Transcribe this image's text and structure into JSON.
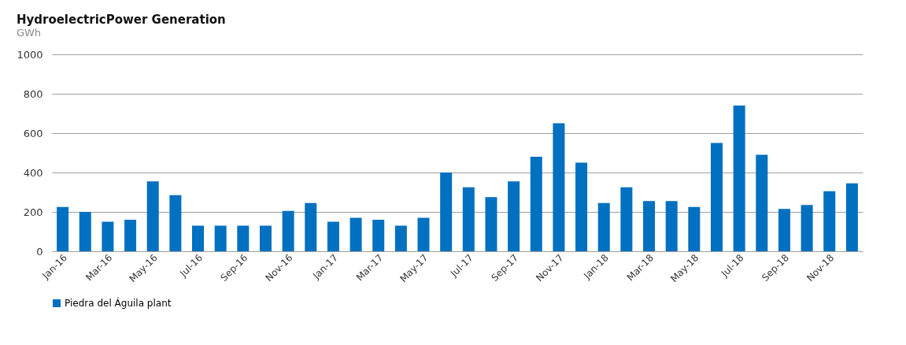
{
  "chart_data": {
    "type": "bar",
    "title": "HydroelectricPower Generation",
    "subtitle": "GWh",
    "categories": [
      "Jan-16",
      null,
      "Mar-16",
      null,
      "May-16",
      null,
      "Jul-16",
      null,
      "Sep-16",
      null,
      "Nov-16",
      null,
      "Jan-17",
      null,
      "Mar-17",
      null,
      "May-17",
      null,
      "Jul-17",
      null,
      "Sep-17",
      null,
      "Nov-17",
      null,
      "Jan-18",
      null,
      "Mar-18",
      null,
      "May-18",
      null,
      "Jul-18",
      null,
      "Sep-18",
      null,
      "Nov-18",
      null
    ],
    "series": [
      {
        "name": "Piedra del Águila plant",
        "color": "#0070c0",
        "values": [
          225,
          200,
          150,
          160,
          355,
          285,
          130,
          130,
          130,
          130,
          205,
          245,
          150,
          170,
          160,
          130,
          170,
          400,
          325,
          275,
          355,
          480,
          650,
          450,
          245,
          325,
          255,
          255,
          225,
          550,
          740,
          490,
          215,
          235,
          305,
          345
        ]
      }
    ],
    "ylim": [
      0,
      1000
    ],
    "yticks": [
      0,
      200,
      400,
      600,
      800,
      1000
    ],
    "grid": "y",
    "legend": "bottom"
  }
}
